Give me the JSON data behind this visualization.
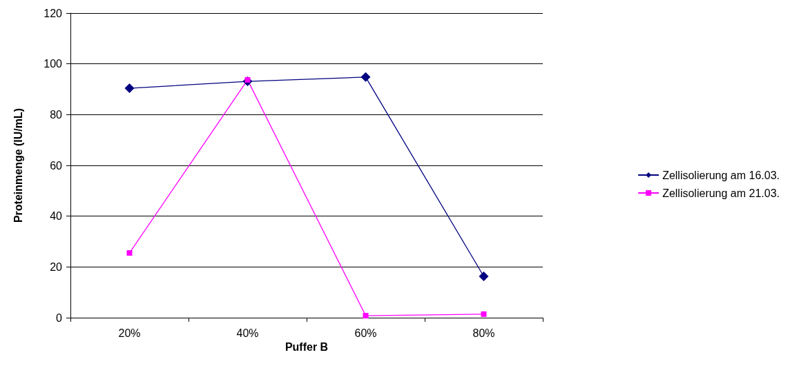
{
  "chart_data": {
    "type": "line",
    "xlabel": "Puffer B",
    "ylabel": "Proteinmenge (IU/mL)",
    "categories": [
      "20%",
      "40%",
      "60%",
      "80%"
    ],
    "series": [
      {
        "name": "Zellisolierung am 16.03.",
        "color": "#000080",
        "marker": "diamond",
        "values": [
          90.4,
          93.1,
          94.8,
          16.3
        ]
      },
      {
        "name": "Zellisolierung am 21.03.",
        "color": "#ff00ff",
        "marker": "square",
        "values": [
          25.5,
          93.7,
          0.8,
          1.4
        ]
      }
    ],
    "ylim": [
      0,
      120
    ],
    "yticks": [
      0,
      20,
      40,
      60,
      80,
      100,
      120
    ],
    "grid": "y",
    "legend": "right",
    "line_style": "solid"
  }
}
